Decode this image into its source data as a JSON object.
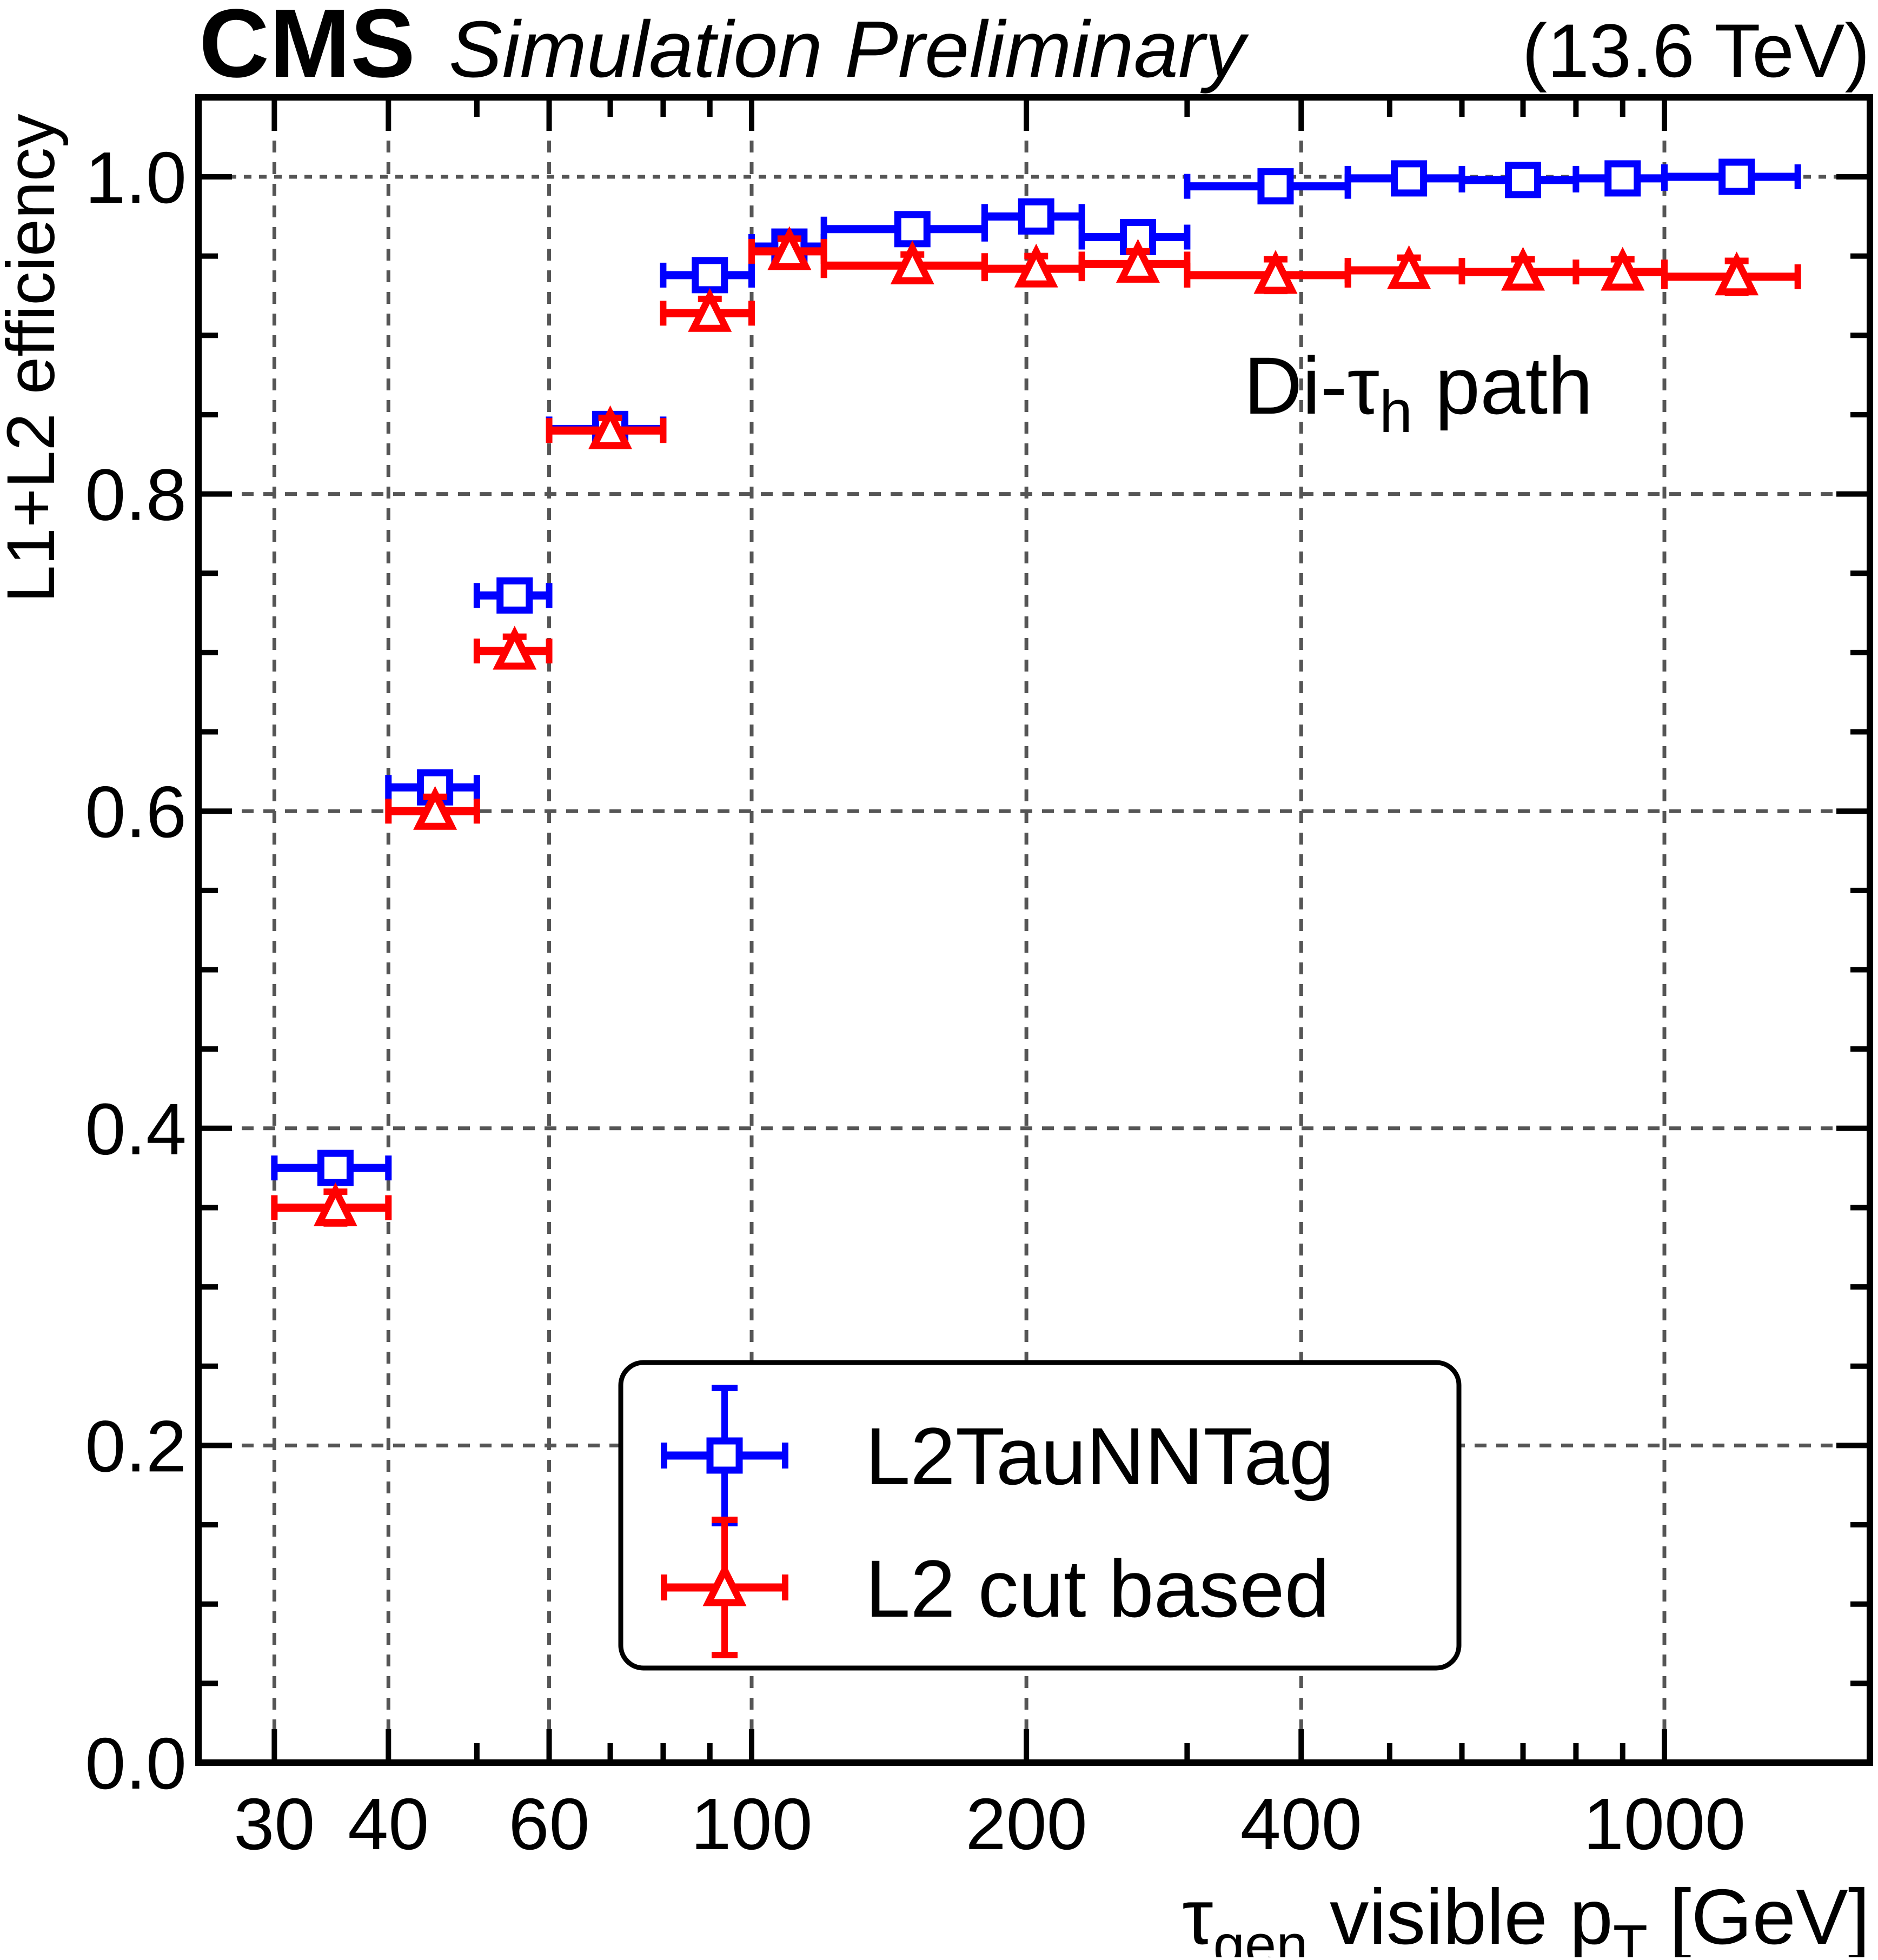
{
  "header": {
    "experiment": "CMS",
    "label": "Simulation Preliminary",
    "energy": "(13.6 TeV)"
  },
  "annotation": {
    "prefix": "Di-τ",
    "subscript": "h",
    "suffix": " path"
  },
  "axes": {
    "x": {
      "title_tau": "τ",
      "title_tau_sub": "gen",
      "title_mid": " visible p",
      "title_pt_sub": "T",
      "title_unit": " [GeV]",
      "scale": "log",
      "min": 25,
      "max": 1680,
      "major_ticks": [
        30,
        40,
        60,
        100,
        200,
        400,
        1000
      ],
      "tick_labels": [
        "30",
        "40",
        "60",
        "100",
        "200",
        "400",
        "1000"
      ],
      "minor_ticks": [
        50,
        70,
        80,
        90,
        300,
        500,
        600,
        700,
        800,
        900
      ]
    },
    "y": {
      "title": "L1+L2 efficiency",
      "min": 0.0,
      "max": 1.05,
      "major_ticks": [
        0.0,
        0.2,
        0.4,
        0.6,
        0.8,
        1.0
      ],
      "tick_labels": [
        "0.0",
        "0.2",
        "0.4",
        "0.6",
        "0.8",
        "1.0"
      ],
      "minor_step": 0.05
    }
  },
  "legend": {
    "entries": [
      {
        "label": "L2TauNNTag",
        "marker": "square",
        "color": "#0000ff"
      },
      {
        "label": "L2 cut based",
        "marker": "triangle",
        "color": "#ff0000"
      }
    ]
  },
  "colors": {
    "series_blue": "#0000ff",
    "series_red": "#ff0000",
    "grid": "#555555",
    "frame": "#000000",
    "background": "#ffffff"
  },
  "chart_data": {
    "type": "scatter",
    "title": "CMS Simulation Preliminary (13.6 TeV)",
    "xlabel": "tau_gen visible pT [GeV]",
    "ylabel": "L1+L2 efficiency",
    "x_scale": "log",
    "xlim": [
      25,
      1680
    ],
    "ylim": [
      0.0,
      1.05
    ],
    "grid": true,
    "legend_position": "bottom-center",
    "x_bins": [
      [
        30,
        40
      ],
      [
        40,
        50
      ],
      [
        50,
        60
      ],
      [
        60,
        80
      ],
      [
        80,
        100
      ],
      [
        100,
        120
      ],
      [
        120,
        180
      ],
      [
        180,
        230
      ],
      [
        230,
        300
      ],
      [
        300,
        450
      ],
      [
        450,
        600
      ],
      [
        600,
        800
      ],
      [
        800,
        1000
      ],
      [
        1000,
        1400
      ]
    ],
    "x_centers": [
      35,
      45,
      55,
      70,
      90,
      110,
      150,
      205,
      265,
      375,
      525,
      700,
      900,
      1200
    ],
    "series": [
      {
        "name": "L2TauNNTag",
        "marker": "square",
        "color": "#0000ff",
        "values": [
          0.375,
          0.615,
          0.736,
          0.841,
          0.938,
          0.956,
          0.967,
          0.975,
          0.962,
          0.994,
          0.999,
          0.998,
          0.999,
          1.0
        ],
        "yerr": [
          0.008,
          0.008,
          0.008,
          0.007,
          0.007,
          0.006,
          0.005,
          0.005,
          0.006,
          0.008,
          0.003,
          0.004,
          0.003,
          0.002
        ]
      },
      {
        "name": "L2 cut based",
        "marker": "triangle",
        "color": "#ff0000",
        "values": [
          0.35,
          0.6,
          0.701,
          0.84,
          0.914,
          0.953,
          0.944,
          0.942,
          0.945,
          0.938,
          0.941,
          0.94,
          0.94,
          0.937
        ],
        "yerr": [
          0.01,
          0.009,
          0.009,
          0.008,
          0.009,
          0.008,
          0.007,
          0.008,
          0.008,
          0.01,
          0.008,
          0.008,
          0.008,
          0.01
        ]
      }
    ]
  }
}
